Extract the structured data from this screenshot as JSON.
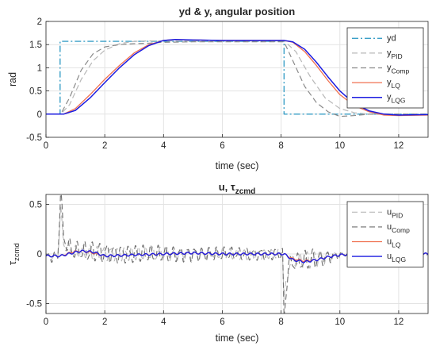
{
  "chart_data": [
    {
      "type": "line",
      "title": "yd & y, angular position",
      "xlabel": "time (sec)",
      "ylabel": "rad",
      "xlim": [
        0,
        13
      ],
      "ylim": [
        -0.5,
        2
      ],
      "xticks": [
        "0",
        "2",
        "4",
        "6",
        "8",
        "10",
        "12"
      ],
      "yticks": [
        "-0.5",
        "0",
        "0.5",
        "1",
        "1.5",
        "2"
      ],
      "legend_position": "top-right",
      "grid": true,
      "series": [
        {
          "name": "yd",
          "legend": {
            "base": "yd",
            "sub": ""
          },
          "color": "#3a9fc7",
          "dash": "dashdot",
          "width": 1.4,
          "points": [
            [
              0,
              0
            ],
            [
              0.48,
              0
            ],
            [
              0.48,
              1.57
            ],
            [
              8.1,
              1.57
            ],
            [
              8.1,
              0
            ],
            [
              13,
              0
            ]
          ]
        },
        {
          "name": "yPID",
          "legend": {
            "base": "y",
            "sub": "PID"
          },
          "color": "#b8b8b8",
          "dash": "dash",
          "width": 1.2,
          "points": [
            [
              0,
              0
            ],
            [
              0.5,
              0
            ],
            [
              0.8,
              0.2
            ],
            [
              1.2,
              0.75
            ],
            [
              1.6,
              1.15
            ],
            [
              2.0,
              1.38
            ],
            [
              2.5,
              1.52
            ],
            [
              3.0,
              1.57
            ],
            [
              3.5,
              1.58
            ],
            [
              4.0,
              1.58
            ],
            [
              5,
              1.58
            ],
            [
              8.1,
              1.58
            ],
            [
              8.5,
              1.35
            ],
            [
              9.0,
              0.8
            ],
            [
              9.5,
              0.35
            ],
            [
              10.0,
              0.12
            ],
            [
              10.5,
              0.03
            ],
            [
              11,
              0
            ],
            [
              13,
              0
            ]
          ]
        },
        {
          "name": "yComp",
          "legend": {
            "base": "y",
            "sub": "Comp"
          },
          "color": "#8a8a8a",
          "dash": "dash",
          "width": 1.2,
          "points": [
            [
              0,
              0
            ],
            [
              0.5,
              0
            ],
            [
              0.8,
              0.35
            ],
            [
              1.2,
              0.95
            ],
            [
              1.6,
              1.3
            ],
            [
              2.0,
              1.45
            ],
            [
              2.5,
              1.5
            ],
            [
              3.0,
              1.52
            ],
            [
              3.5,
              1.53
            ],
            [
              4.0,
              1.55
            ],
            [
              5,
              1.56
            ],
            [
              8.1,
              1.56
            ],
            [
              8.4,
              1.15
            ],
            [
              8.8,
              0.6
            ],
            [
              9.2,
              0.25
            ],
            [
              9.6,
              0.05
            ],
            [
              10.0,
              -0.05
            ],
            [
              10.5,
              -0.03
            ],
            [
              11,
              0
            ],
            [
              13,
              0
            ]
          ]
        },
        {
          "name": "yLQ",
          "legend": {
            "base": "y",
            "sub": "LQ"
          },
          "color": "#f07050",
          "dash": "solid",
          "width": 1.3,
          "points": [
            [
              0,
              0
            ],
            [
              0.6,
              0
            ],
            [
              1.0,
              0.12
            ],
            [
              1.5,
              0.42
            ],
            [
              2.0,
              0.75
            ],
            [
              2.5,
              1.05
            ],
            [
              3.0,
              1.32
            ],
            [
              3.5,
              1.5
            ],
            [
              4.0,
              1.59
            ],
            [
              4.4,
              1.61
            ],
            [
              5.0,
              1.6
            ],
            [
              6.0,
              1.59
            ],
            [
              8.1,
              1.59
            ],
            [
              8.4,
              1.55
            ],
            [
              8.8,
              1.35
            ],
            [
              9.2,
              1.05
            ],
            [
              9.6,
              0.72
            ],
            [
              10.0,
              0.42
            ],
            [
              10.5,
              0.18
            ],
            [
              11.0,
              0.05
            ],
            [
              11.5,
              -0.02
            ],
            [
              12.0,
              -0.03
            ],
            [
              13,
              -0.02
            ]
          ]
        },
        {
          "name": "yLQG",
          "legend": {
            "base": "y",
            "sub": "LQG"
          },
          "color": "#1c1ce0",
          "dash": "solid",
          "width": 1.5,
          "points": [
            [
              0,
              0
            ],
            [
              0.6,
              0
            ],
            [
              1.0,
              0.08
            ],
            [
              1.5,
              0.35
            ],
            [
              2.0,
              0.68
            ],
            [
              2.5,
              1.0
            ],
            [
              3.0,
              1.28
            ],
            [
              3.5,
              1.48
            ],
            [
              4.0,
              1.59
            ],
            [
              4.4,
              1.61
            ],
            [
              5.0,
              1.6
            ],
            [
              6.0,
              1.59
            ],
            [
              8.1,
              1.59
            ],
            [
              8.4,
              1.56
            ],
            [
              8.8,
              1.4
            ],
            [
              9.2,
              1.12
            ],
            [
              9.6,
              0.8
            ],
            [
              10.0,
              0.5
            ],
            [
              10.5,
              0.22
            ],
            [
              11.0,
              0.07
            ],
            [
              11.5,
              0.0
            ],
            [
              12.0,
              -0.02
            ],
            [
              13,
              -0.01
            ]
          ]
        }
      ]
    },
    {
      "type": "line",
      "title": {
        "base": "u, τ",
        "sub": "zcmd"
      },
      "xlabel": "time (sec)",
      "ylabel": {
        "base": "τ",
        "sub": "zcmd"
      },
      "xlim": [
        0,
        13
      ],
      "ylim": [
        -0.6,
        0.6
      ],
      "xticks": [
        "0",
        "2",
        "4",
        "6",
        "8",
        "10",
        "12"
      ],
      "yticks": [
        "-0.5",
        "0",
        "0.5"
      ],
      "legend_position": "top-right",
      "grid": true,
      "series": [
        {
          "name": "uPID",
          "legend": {
            "base": "u",
            "sub": "PID"
          },
          "color": "#b8b8b8",
          "dash": "dash",
          "width": 1.1,
          "signal": {
            "base": [
              [
                0,
                -0.02
              ],
              [
                0.4,
                -0.02
              ],
              [
                0.5,
                0.45
              ],
              [
                0.6,
                0.1
              ],
              [
                0.9,
                0.02
              ],
              [
                3,
                0
              ],
              [
                8.05,
                0
              ],
              [
                8.1,
                -0.45
              ],
              [
                8.3,
                -0.08
              ],
              [
                8.8,
                -0.06
              ],
              [
                10.2,
                0
              ],
              [
                13,
                0
              ]
            ],
            "amp": [
              [
                0,
                0.03
              ],
              [
                0.6,
                0.06
              ],
              [
                1.5,
                0.08
              ],
              [
                5,
                0.07
              ],
              [
                8,
                0.05
              ],
              [
                9,
                0.1
              ],
              [
                10.2,
                0.03
              ],
              [
                13,
                0.01
              ]
            ],
            "freq": 4.2
          }
        },
        {
          "name": "uComp",
          "legend": {
            "base": "u",
            "sub": "Comp"
          },
          "color": "#6e6e6e",
          "dash": "dash",
          "width": 1.1,
          "signal": {
            "base": [
              [
                0,
                -0.03
              ],
              [
                0.4,
                -0.03
              ],
              [
                0.5,
                0.65
              ],
              [
                0.6,
                0.15
              ],
              [
                0.9,
                0.03
              ],
              [
                3,
                0
              ],
              [
                8.05,
                0
              ],
              [
                8.1,
                -0.65
              ],
              [
                8.25,
                -0.1
              ],
              [
                8.8,
                -0.07
              ],
              [
                10.2,
                0
              ],
              [
                13,
                0
              ]
            ],
            "amp": [
              [
                0,
                0.04
              ],
              [
                0.6,
                0.09
              ],
              [
                1.5,
                0.11
              ],
              [
                5,
                0.08
              ],
              [
                8,
                0.06
              ],
              [
                9,
                0.12
              ],
              [
                10.2,
                0.02
              ],
              [
                13,
                0.01
              ]
            ],
            "freq": 4.0
          }
        },
        {
          "name": "uLQ",
          "legend": {
            "base": "u",
            "sub": "LQ"
          },
          "color": "#f07050",
          "dash": "solid",
          "width": 1.3,
          "points": [
            [
              0,
              -0.02
            ],
            [
              0.5,
              -0.02
            ],
            [
              0.9,
              0.02
            ],
            [
              1.2,
              0.03
            ],
            [
              1.6,
              0.01
            ],
            [
              2.0,
              -0.02
            ],
            [
              3,
              -0.01
            ],
            [
              4,
              0
            ],
            [
              5,
              0.01
            ],
            [
              6,
              0
            ],
            [
              7,
              0
            ],
            [
              8.1,
              0
            ],
            [
              8.4,
              -0.05
            ],
            [
              8.8,
              -0.07
            ],
            [
              9.2,
              -0.06
            ],
            [
              9.6,
              -0.03
            ],
            [
              10.0,
              -0.01
            ],
            [
              11,
              0.01
            ],
            [
              13,
              0
            ]
          ],
          "wiggle": {
            "amp": 0.008,
            "freq": 4.2
          }
        },
        {
          "name": "uLQG",
          "legend": {
            "base": "u",
            "sub": "LQG"
          },
          "color": "#1c1ce0",
          "dash": "solid",
          "width": 1.4,
          "points": [
            [
              0,
              -0.02
            ],
            [
              0.5,
              -0.02
            ],
            [
              0.9,
              0.01
            ],
            [
              1.2,
              0.03
            ],
            [
              1.6,
              0.02
            ],
            [
              2.0,
              -0.02
            ],
            [
              3,
              -0.01
            ],
            [
              4,
              0
            ],
            [
              5,
              0.01
            ],
            [
              6,
              0
            ],
            [
              7,
              0
            ],
            [
              8.1,
              0
            ],
            [
              8.4,
              -0.06
            ],
            [
              8.8,
              -0.08
            ],
            [
              9.2,
              -0.06
            ],
            [
              9.6,
              -0.03
            ],
            [
              10.0,
              -0.01
            ],
            [
              11,
              0.01
            ],
            [
              13,
              0
            ]
          ],
          "wiggle": {
            "amp": 0.01,
            "freq": 4.2
          }
        }
      ]
    }
  ]
}
